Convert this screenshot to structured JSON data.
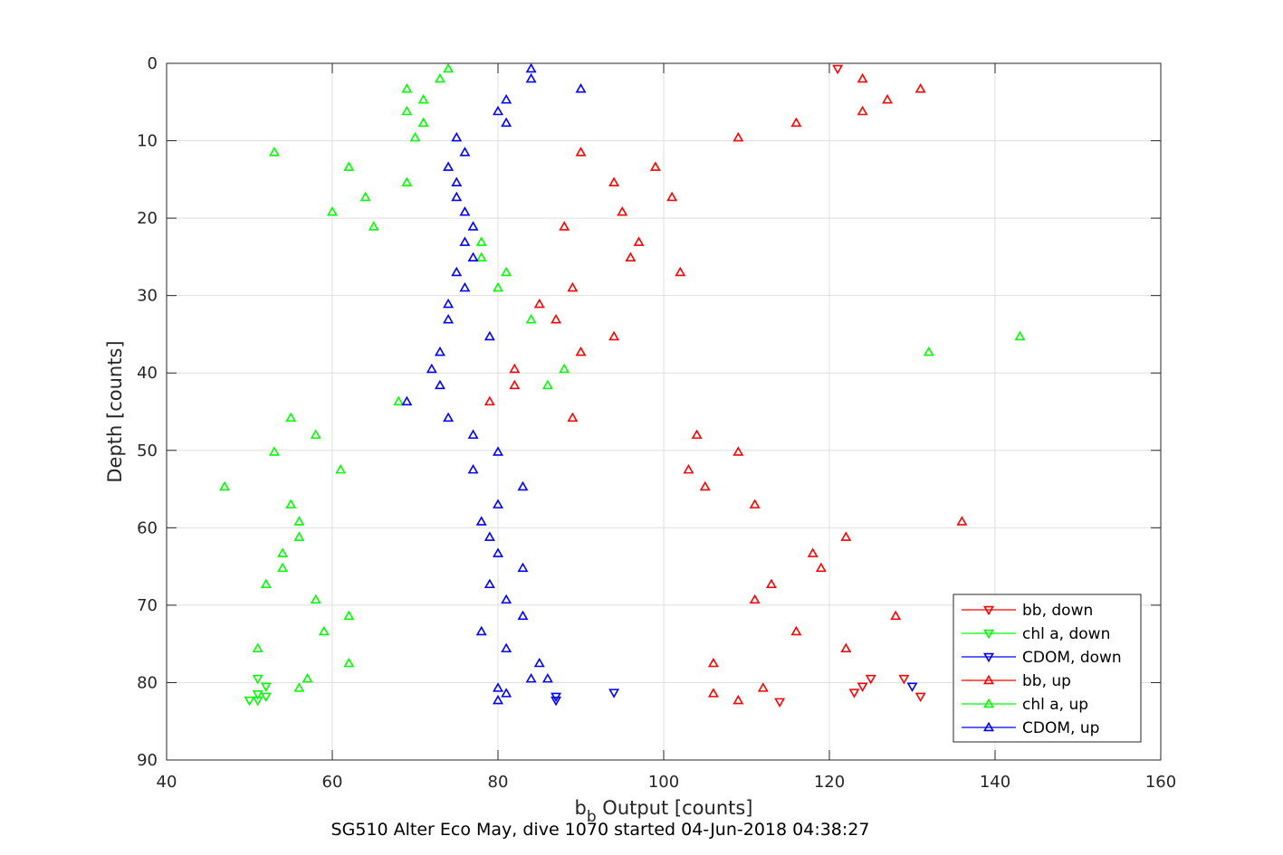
{
  "chart_data": {
    "type": "scatter",
    "title": "SG510 Alter Eco May, dive 1070 started 04-Jun-2018 04:38:27",
    "xlabel_main": "b",
    "xlabel_sub": "b",
    "xlabel_rest": " Output [counts]",
    "ylabel": "Depth [counts]",
    "xlim": [
      40,
      160
    ],
    "ylim": [
      0,
      90
    ],
    "y_reversed": true,
    "grid": true,
    "legend_position": "bottom-right",
    "xticks": [
      "40",
      "60",
      "80",
      "100",
      "120",
      "140",
      "160"
    ],
    "yticks": [
      "0",
      "10",
      "20",
      "30",
      "40",
      "50",
      "60",
      "70",
      "80",
      "90"
    ],
    "series": [
      {
        "name": "bb, down",
        "color": "#ff0000",
        "marker": "triangle-down",
        "points": [
          [
            121,
            0.7
          ],
          [
            125,
            79.5
          ],
          [
            124,
            80.5
          ],
          [
            123,
            81.3
          ],
          [
            129,
            79.5
          ],
          [
            131,
            81.8
          ],
          [
            114,
            82.5
          ]
        ]
      },
      {
        "name": "chl a, down",
        "color": "#00ff00",
        "marker": "triangle-down",
        "points": [
          [
            51,
            79.5
          ],
          [
            52,
            80.5
          ],
          [
            51,
            81.5
          ],
          [
            52,
            81.8
          ],
          [
            51,
            82.3
          ],
          [
            50,
            82.3
          ]
        ]
      },
      {
        "name": "CDOM, down",
        "color": "#0000ff",
        "marker": "triangle-down",
        "points": [
          [
            130,
            80.5
          ],
          [
            87,
            81.8
          ],
          [
            94,
            81.3
          ],
          [
            87,
            82.3
          ]
        ]
      },
      {
        "name": "bb, up",
        "color": "#ff0000",
        "marker": "triangle-up",
        "points": [
          [
            124,
            2
          ],
          [
            131,
            3.3
          ],
          [
            127,
            4.7
          ],
          [
            124,
            6.2
          ],
          [
            116,
            7.7
          ],
          [
            109,
            9.6
          ],
          [
            90,
            11.5
          ],
          [
            99,
            13.4
          ],
          [
            94,
            15.4
          ],
          [
            101,
            17.3
          ],
          [
            95,
            19.2
          ],
          [
            88,
            21.1
          ],
          [
            97,
            23.1
          ],
          [
            96,
            25.1
          ],
          [
            102,
            27
          ],
          [
            89,
            29
          ],
          [
            85,
            31.1
          ],
          [
            87,
            33.1
          ],
          [
            94,
            35.3
          ],
          [
            90,
            37.3
          ],
          [
            82,
            39.5
          ],
          [
            82,
            41.6
          ],
          [
            79,
            43.7
          ],
          [
            89,
            45.8
          ],
          [
            104,
            48
          ],
          [
            109,
            50.2
          ],
          [
            103,
            52.5
          ],
          [
            105,
            54.7
          ],
          [
            111,
            57
          ],
          [
            136,
            59.2
          ],
          [
            122,
            61.2
          ],
          [
            118,
            63.3
          ],
          [
            119,
            65.2
          ],
          [
            113,
            67.3
          ],
          [
            111,
            69.3
          ],
          [
            128,
            71.4
          ],
          [
            116,
            73.4
          ],
          [
            122,
            75.6
          ],
          [
            106,
            77.5
          ],
          [
            112,
            80.7
          ],
          [
            106,
            81.4
          ],
          [
            109,
            82.3
          ]
        ]
      },
      {
        "name": "chl a, up",
        "color": "#00ff00",
        "marker": "triangle-up",
        "points": [
          [
            74,
            0.7
          ],
          [
            73,
            2
          ],
          [
            69,
            3.3
          ],
          [
            71,
            4.7
          ],
          [
            69,
            6.2
          ],
          [
            71,
            7.7
          ],
          [
            70,
            9.6
          ],
          [
            53,
            11.5
          ],
          [
            62,
            13.4
          ],
          [
            69,
            15.4
          ],
          [
            64,
            17.3
          ],
          [
            60,
            19.2
          ],
          [
            65,
            21.1
          ],
          [
            78,
            23.1
          ],
          [
            78,
            25.1
          ],
          [
            81,
            27
          ],
          [
            80,
            29
          ],
          [
            84,
            33.1
          ],
          [
            143,
            35.3
          ],
          [
            132,
            37.3
          ],
          [
            88,
            39.5
          ],
          [
            86,
            41.6
          ],
          [
            68,
            43.7
          ],
          [
            55,
            45.8
          ],
          [
            58,
            48
          ],
          [
            53,
            50.2
          ],
          [
            61,
            52.5
          ],
          [
            47,
            54.7
          ],
          [
            55,
            57
          ],
          [
            56,
            59.2
          ],
          [
            56,
            61.2
          ],
          [
            54,
            63.3
          ],
          [
            54,
            65.2
          ],
          [
            52,
            67.3
          ],
          [
            58,
            69.3
          ],
          [
            62,
            71.4
          ],
          [
            59,
            73.4
          ],
          [
            51,
            75.6
          ],
          [
            62,
            77.5
          ],
          [
            57,
            79.5
          ],
          [
            56,
            80.7
          ]
        ]
      },
      {
        "name": "CDOM, up",
        "color": "#0000ff",
        "marker": "triangle-up",
        "points": [
          [
            84,
            0.7
          ],
          [
            84,
            2
          ],
          [
            90,
            3.3
          ],
          [
            81,
            4.7
          ],
          [
            80,
            6.2
          ],
          [
            81,
            7.7
          ],
          [
            75,
            9.6
          ],
          [
            76,
            11.5
          ],
          [
            74,
            13.4
          ],
          [
            75,
            15.4
          ],
          [
            75,
            17.3
          ],
          [
            76,
            19.2
          ],
          [
            77,
            21.1
          ],
          [
            76,
            23.1
          ],
          [
            77,
            25.1
          ],
          [
            75,
            27
          ],
          [
            76,
            29
          ],
          [
            74,
            31.1
          ],
          [
            74,
            33.1
          ],
          [
            79,
            35.3
          ],
          [
            73,
            37.3
          ],
          [
            72,
            39.5
          ],
          [
            73,
            41.6
          ],
          [
            69,
            43.7
          ],
          [
            74,
            45.8
          ],
          [
            77,
            48
          ],
          [
            80,
            50.2
          ],
          [
            77,
            52.5
          ],
          [
            83,
            54.7
          ],
          [
            80,
            57
          ],
          [
            78,
            59.2
          ],
          [
            79,
            61.2
          ],
          [
            80,
            63.3
          ],
          [
            83,
            65.2
          ],
          [
            79,
            67.3
          ],
          [
            81,
            69.3
          ],
          [
            83,
            71.4
          ],
          [
            78,
            73.4
          ],
          [
            81,
            75.6
          ],
          [
            85,
            77.5
          ],
          [
            84,
            79.5
          ],
          [
            86,
            79.5
          ],
          [
            80,
            80.7
          ],
          [
            81,
            81.4
          ],
          [
            80,
            82.3
          ]
        ]
      }
    ]
  }
}
